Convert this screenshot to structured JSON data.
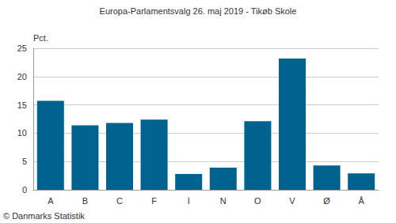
{
  "chart_data": {
    "type": "bar",
    "title": "Europa-Parlamentsvalg 26. maj 2019 - Tikøb Skole",
    "y_label": "Pct.",
    "annotation": "© Danmarks Statistik",
    "categories": [
      "A",
      "B",
      "C",
      "F",
      "I",
      "N",
      "O",
      "V",
      "Ø",
      "Å"
    ],
    "values": [
      15.7,
      11.4,
      11.8,
      12.4,
      2.8,
      3.9,
      12.1,
      23.2,
      4.3,
      2.9
    ],
    "color": "#00628f",
    "ylim": [
      0,
      25
    ],
    "yticks": [
      0,
      5,
      10,
      15,
      20,
      25
    ],
    "grid": true
  }
}
